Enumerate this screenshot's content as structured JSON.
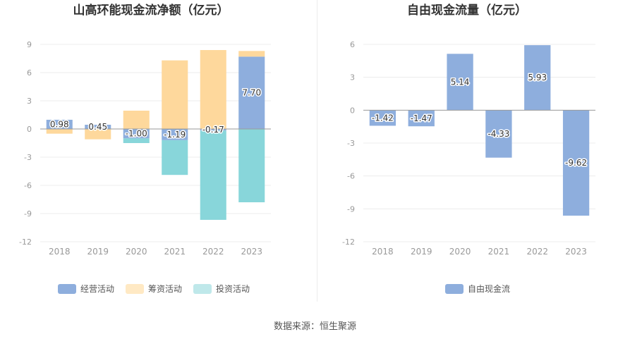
{
  "source": "数据来源：恒生聚源",
  "colors": {
    "operating": "#8eaedd",
    "financing": "#fed89c",
    "investing": "#88d6da",
    "financing_legend": "#ffe9c4",
    "investing_legend": "#bfe8ea",
    "fcf": "#8eaedd"
  },
  "chart_data": [
    {
      "type": "bar",
      "stacked": true,
      "title": "山高环能现金流净额（亿元）",
      "categories": [
        "2018",
        "2019",
        "2020",
        "2021",
        "2022",
        "2023"
      ],
      "ylim": [
        -12,
        9
      ],
      "yticks": [
        9,
        6,
        3,
        0,
        -3,
        -6,
        -9,
        -12
      ],
      "grid": true,
      "legend": "bottom",
      "series": [
        {
          "name": "经营活动",
          "values": [
            0.98,
            0.45,
            -1.0,
            -1.19,
            -0.17,
            7.7
          ],
          "labels": [
            "0.98",
            "0.45",
            "-1.00",
            "-1.19",
            "-0.17",
            "7.70"
          ]
        },
        {
          "name": "筹资活动",
          "values": [
            -0.5,
            -1.1,
            1.95,
            7.3,
            8.4,
            0.6
          ]
        },
        {
          "name": "投资活动",
          "values": [
            0,
            0,
            -0.5,
            -3.7,
            -9.5,
            -7.8
          ]
        }
      ]
    },
    {
      "type": "bar",
      "title": "自由现金流量（亿元）",
      "categories": [
        "2018",
        "2019",
        "2020",
        "2021",
        "2022",
        "2023"
      ],
      "ylim": [
        -12,
        6
      ],
      "yticks": [
        6,
        3,
        0,
        -3,
        -6,
        -9,
        -12
      ],
      "grid": true,
      "legend": "bottom",
      "series": [
        {
          "name": "自由现金流",
          "values": [
            -1.42,
            -1.47,
            5.14,
            -4.33,
            5.93,
            -9.62
          ],
          "labels": [
            "-1.42",
            "-1.47",
            "5.14",
            "-4.33",
            "5.93",
            "-9.62"
          ]
        }
      ]
    }
  ]
}
